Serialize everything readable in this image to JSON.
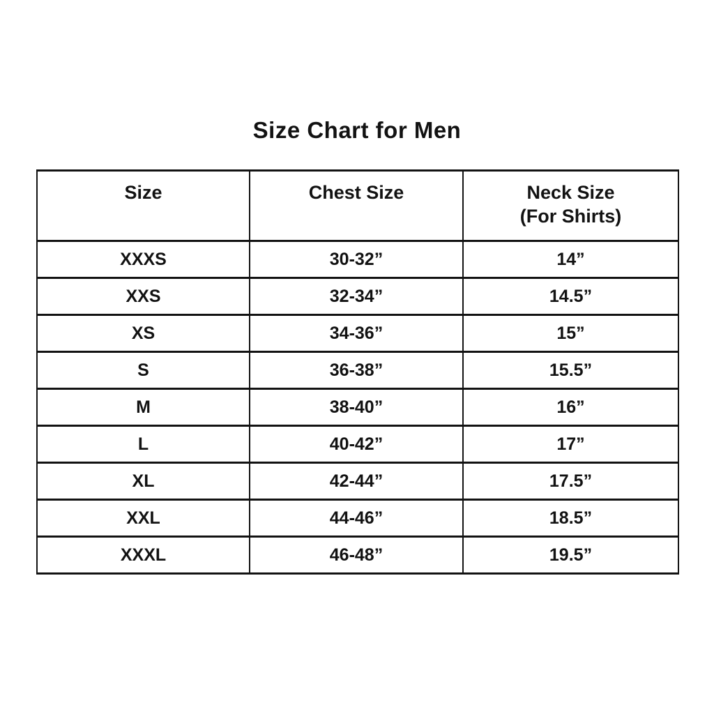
{
  "page": {
    "title": "Size Chart for Men"
  },
  "colors": {
    "background": "#ffffff",
    "text": "#121212",
    "border": "#121212"
  },
  "chart_data": {
    "type": "table",
    "title": "Size Chart for Men",
    "columns": [
      "Size",
      "Chest Size",
      "Neck Size (For Shirts)"
    ],
    "header_display": {
      "size": "Size",
      "chest": "Chest Size",
      "neck_line1": "Neck Size",
      "neck_line2": "(For Shirts)"
    },
    "rows": [
      {
        "size": "XXXS",
        "chest": "30-32”",
        "neck": "14”"
      },
      {
        "size": "XXS",
        "chest": "32-34”",
        "neck": "14.5”"
      },
      {
        "size": "XS",
        "chest": "34-36”",
        "neck": "15”"
      },
      {
        "size": "S",
        "chest": "36-38”",
        "neck": "15.5”"
      },
      {
        "size": "M",
        "chest": "38-40”",
        "neck": "16”"
      },
      {
        "size": "L",
        "chest": "40-42”",
        "neck": "17”"
      },
      {
        "size": "XL",
        "chest": "42-44”",
        "neck": "17.5”"
      },
      {
        "size": "XXL",
        "chest": "44-46”",
        "neck": "18.5”"
      },
      {
        "size": "XXXL",
        "chest": "46-48”",
        "neck": "19.5”"
      }
    ]
  }
}
